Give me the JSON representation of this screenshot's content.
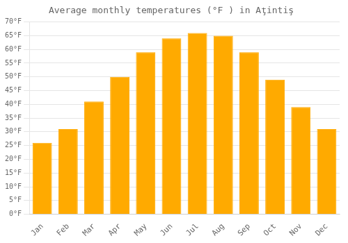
{
  "chart_data": {
    "type": "bar",
    "title": "Average monthly temperatures (°F ) in Aţintiş",
    "categories": [
      "Jan",
      "Feb",
      "Mar",
      "Apr",
      "May",
      "Jun",
      "Jul",
      "Aug",
      "Sep",
      "Oct",
      "Nov",
      "Dec"
    ],
    "values": [
      26,
      31,
      41,
      50,
      59,
      64,
      66,
      65,
      59,
      49,
      39,
      31
    ],
    "color": "#FFAA00",
    "ylim": [
      0,
      70
    ],
    "yticks": [
      {
        "value": 0,
        "label": "0°F"
      },
      {
        "value": 5,
        "label": "5°F"
      },
      {
        "value": 10,
        "label": "10°F"
      },
      {
        "value": 15,
        "label": "15°F"
      },
      {
        "value": 20,
        "label": "20°F"
      },
      {
        "value": 25,
        "label": "25°F"
      },
      {
        "value": 30,
        "label": "30°F"
      },
      {
        "value": 35,
        "label": "35°F"
      },
      {
        "value": 40,
        "label": "40°F"
      },
      {
        "value": 45,
        "label": "45°F"
      },
      {
        "value": 50,
        "label": "50°F"
      },
      {
        "value": 55,
        "label": "55°F"
      },
      {
        "value": 60,
        "label": "60°F"
      },
      {
        "value": 65,
        "label": "65°F"
      },
      {
        "value": 70,
        "label": "70°F"
      }
    ],
    "grid": true
  }
}
